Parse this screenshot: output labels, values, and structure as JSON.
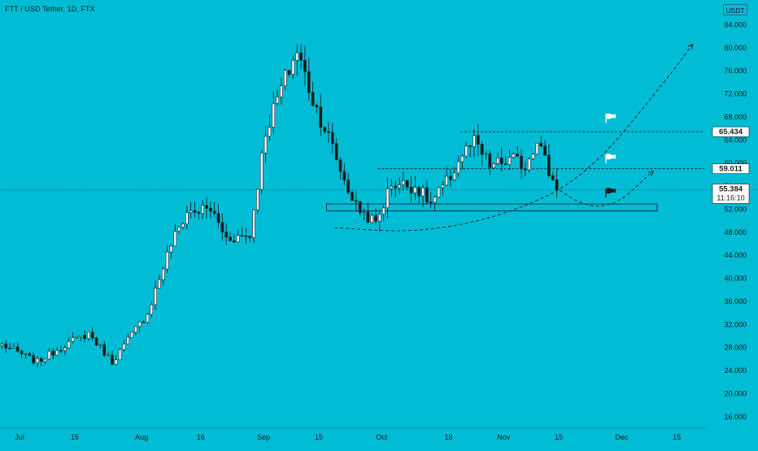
{
  "chart_data": {
    "type": "candlestick",
    "title": "FTT / USD Tether, 1D, FTX",
    "currency": "USDT",
    "y_scale": "linear",
    "y_range": [
      14.0,
      88.0
    ],
    "y_ticks": [
      "84.000",
      "80.000",
      "76.000",
      "72.000",
      "68.000",
      "64.000",
      "60.000",
      "56.000",
      "52.000",
      "48.000",
      "44.000",
      "40.000",
      "36.000",
      "32.000",
      "28.000",
      "24.000",
      "20.000",
      "16.000"
    ],
    "y_tick_values": [
      84,
      80,
      76,
      72,
      68,
      64,
      60,
      56,
      52,
      48,
      44,
      40,
      36,
      32,
      28,
      24,
      20,
      16
    ],
    "top_partial_tick": "8",
    "x_date_range": [
      "2021-06-26",
      "2021-12-22"
    ],
    "x_ticks": [
      {
        "label": "Jul",
        "date": "2021-07-01"
      },
      {
        "label": "15",
        "date": "2021-07-15"
      },
      {
        "label": "Aug",
        "date": "2021-08-01"
      },
      {
        "label": "16",
        "date": "2021-08-16"
      },
      {
        "label": "Sep",
        "date": "2021-09-01"
      },
      {
        "label": "15",
        "date": "2021-09-15"
      },
      {
        "label": "Oct",
        "date": "2021-10-01"
      },
      {
        "label": "18",
        "date": "2021-10-18"
      },
      {
        "label": "Nov",
        "date": "2021-11-01"
      },
      {
        "label": "15",
        "date": "2021-11-15"
      },
      {
        "label": "Dec",
        "date": "2021-12-01"
      },
      {
        "label": "15",
        "date": "2021-12-15"
      }
    ],
    "price_labels": [
      {
        "text": "65.434",
        "value": 65.434
      },
      {
        "text": "59.011",
        "value": 59.011
      },
      {
        "text": "55.384",
        "value": 55.384,
        "countdown": "11:16:10"
      }
    ],
    "resistance_lines": [
      {
        "value": 65.434,
        "from": "2021-10-21",
        "to": "2021-12-22"
      },
      {
        "value": 59.011,
        "from": "2021-09-30",
        "to": "2021-12-22"
      }
    ],
    "current_price_line": 55.384,
    "support_zone": {
      "from": "2021-09-17",
      "to": "2021-12-10",
      "low": 51.7,
      "high": 52.9
    },
    "flags": [
      {
        "date": "2021-11-27",
        "value": 67.8,
        "color": "white"
      },
      {
        "date": "2021-11-27",
        "value": 60.8,
        "color": "white"
      },
      {
        "date": "2021-11-27",
        "value": 54.9,
        "color": "black"
      }
    ],
    "projection_curves": [
      {
        "style": "dashed",
        "points": [
          [
            "2021-09-19",
            48.8
          ],
          [
            "2021-10-10",
            47.9
          ],
          [
            "2021-11-01",
            50.8
          ],
          [
            "2021-11-22",
            57.5
          ],
          [
            "2021-12-13",
            75.0
          ],
          [
            "2021-12-19",
            80.6
          ]
        ]
      },
      {
        "style": "dashed",
        "points": [
          [
            "2021-11-14",
            55.8
          ],
          [
            "2021-11-22",
            52.3
          ],
          [
            "2021-11-30",
            52.9
          ],
          [
            "2021-12-07",
            57.4
          ],
          [
            "2021-12-09",
            58.6
          ]
        ]
      }
    ],
    "legend": "none",
    "grid": false
  }
}
